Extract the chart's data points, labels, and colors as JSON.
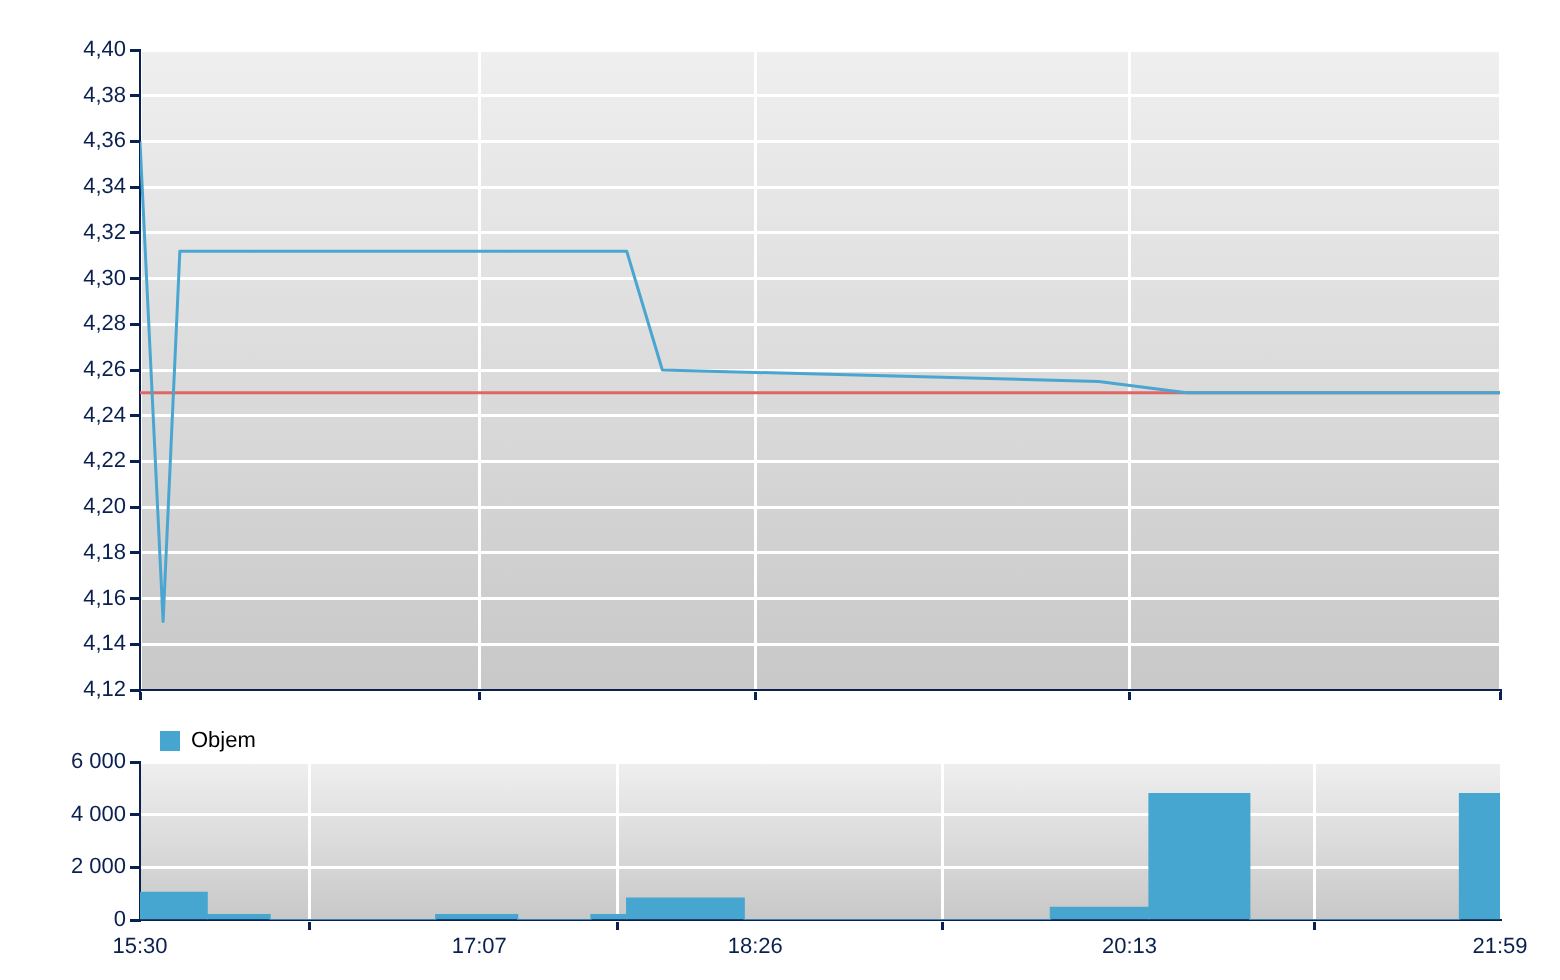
{
  "chart_data": [
    {
      "type": "line",
      "x": [
        15.5,
        15.61,
        15.69,
        17.82,
        17.99,
        20.07,
        20.49,
        21.983
      ],
      "series": [
        {
          "color": "#4aa6d0",
          "values": [
            4.36,
            4.15,
            4.312,
            4.312,
            4.26,
            4.255,
            4.25,
            4.25
          ]
        }
      ],
      "xlim": [
        15.5,
        21.983
      ],
      "xticks": [
        {
          "value": 15.5,
          "label": null
        },
        {
          "value": 17.117,
          "label": null
        },
        {
          "value": 18.433,
          "label": null
        },
        {
          "value": 20.217,
          "label": null
        },
        {
          "value": 21.983,
          "label": null
        }
      ],
      "ylim": [
        4.12,
        4.4
      ],
      "yticks": [
        {
          "value": 4.12,
          "label": "4,12"
        },
        {
          "value": 4.14,
          "label": "4,14"
        },
        {
          "value": 4.16,
          "label": "4,16"
        },
        {
          "value": 4.18,
          "label": "4,18"
        },
        {
          "value": 4.2,
          "label": "4,20"
        },
        {
          "value": 4.22,
          "label": "4,22"
        },
        {
          "value": 4.24,
          "label": "4,24"
        },
        {
          "value": 4.26,
          "label": "4,26"
        },
        {
          "value": 4.28,
          "label": "4,28"
        },
        {
          "value": 4.3,
          "label": "4,30"
        },
        {
          "value": 4.32,
          "label": "4,32"
        },
        {
          "value": 4.34,
          "label": "4,34"
        },
        {
          "value": 4.36,
          "label": "4,36"
        },
        {
          "value": 4.38,
          "label": "4,38"
        },
        {
          "value": 4.4,
          "label": "4,40"
        }
      ],
      "ref_lines": [
        {
          "axis": "y",
          "value": 4.25,
          "color": "#e06666"
        }
      ],
      "tick_labels": "y",
      "grid": true
    },
    {
      "type": "histogram",
      "bins": [
        15.5,
        15.82,
        16.12,
        16.91,
        17.3,
        17.65,
        17.82,
        18.38,
        19.84,
        20.31,
        20.79,
        21.79,
        21.983
      ],
      "series": [
        {
          "name": "Objem",
          "color": "#46a6cf",
          "values": [
            1050,
            200,
            0,
            200,
            0,
            200,
            830,
            0,
            480,
            4800,
            0,
            4800
          ]
        }
      ],
      "xlim": [
        15.5,
        21.983
      ],
      "xticks": [
        {
          "value": 15.5,
          "label": "15:30"
        },
        {
          "value": 17.117,
          "label": "17:07"
        },
        {
          "value": 18.433,
          "label": "18:26"
        },
        {
          "value": 20.217,
          "label": "20:13"
        },
        {
          "value": 21.983,
          "label": "21:59"
        }
      ],
      "ylim": [
        0,
        6000
      ],
      "yticks": [
        0,
        {
          "value": 2000,
          "label": "2 000"
        },
        {
          "value": 4000,
          "label": "4 000"
        },
        {
          "value": 6000,
          "label": "6 000"
        }
      ],
      "legend": "left",
      "grid": true
    }
  ]
}
